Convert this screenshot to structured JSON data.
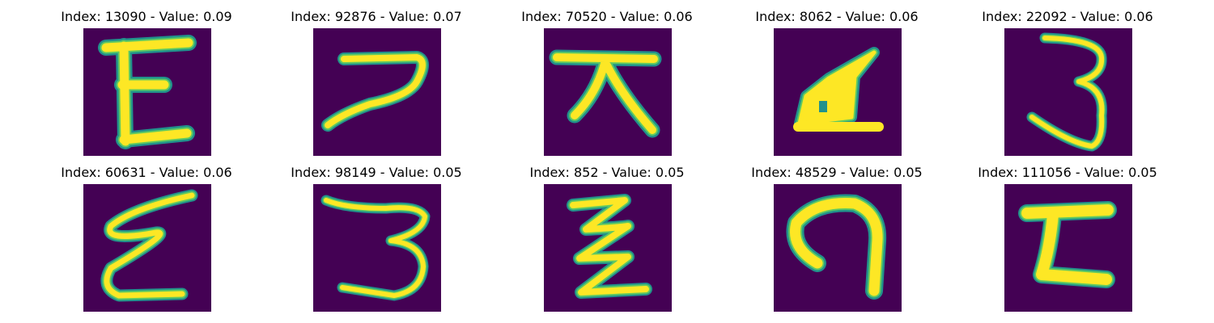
{
  "figure": {
    "colors": {
      "background": "#440154",
      "stroke_outer": "#21918c",
      "stroke_mid": "#5ec962",
      "stroke_core": "#fde725"
    },
    "panels": [
      {
        "title": "Index: 13090 - Value: 0.09",
        "glyph": "E"
      },
      {
        "title": "Index: 92876 - Value: 0.07",
        "glyph": "7-like"
      },
      {
        "title": "Index: 70520 - Value: 0.06",
        "glyph": "ㅈ-like"
      },
      {
        "title": "Index: 8062 - Value: 0.06",
        "glyph": "filled-4-like"
      },
      {
        "title": "Index: 22092 - Value: 0.06",
        "glyph": "3"
      },
      {
        "title": "Index: 60631 - Value: 0.06",
        "glyph": "ε-like"
      },
      {
        "title": "Index: 98149 - Value: 0.05",
        "glyph": "3"
      },
      {
        "title": "Index: 852 - Value: 0.05",
        "glyph": "zigzag"
      },
      {
        "title": "Index: 48529 - Value: 0.05",
        "glyph": "ก-like"
      },
      {
        "title": "Index: 111056 - Value: 0.05",
        "glyph": "Σ-like"
      }
    ]
  }
}
